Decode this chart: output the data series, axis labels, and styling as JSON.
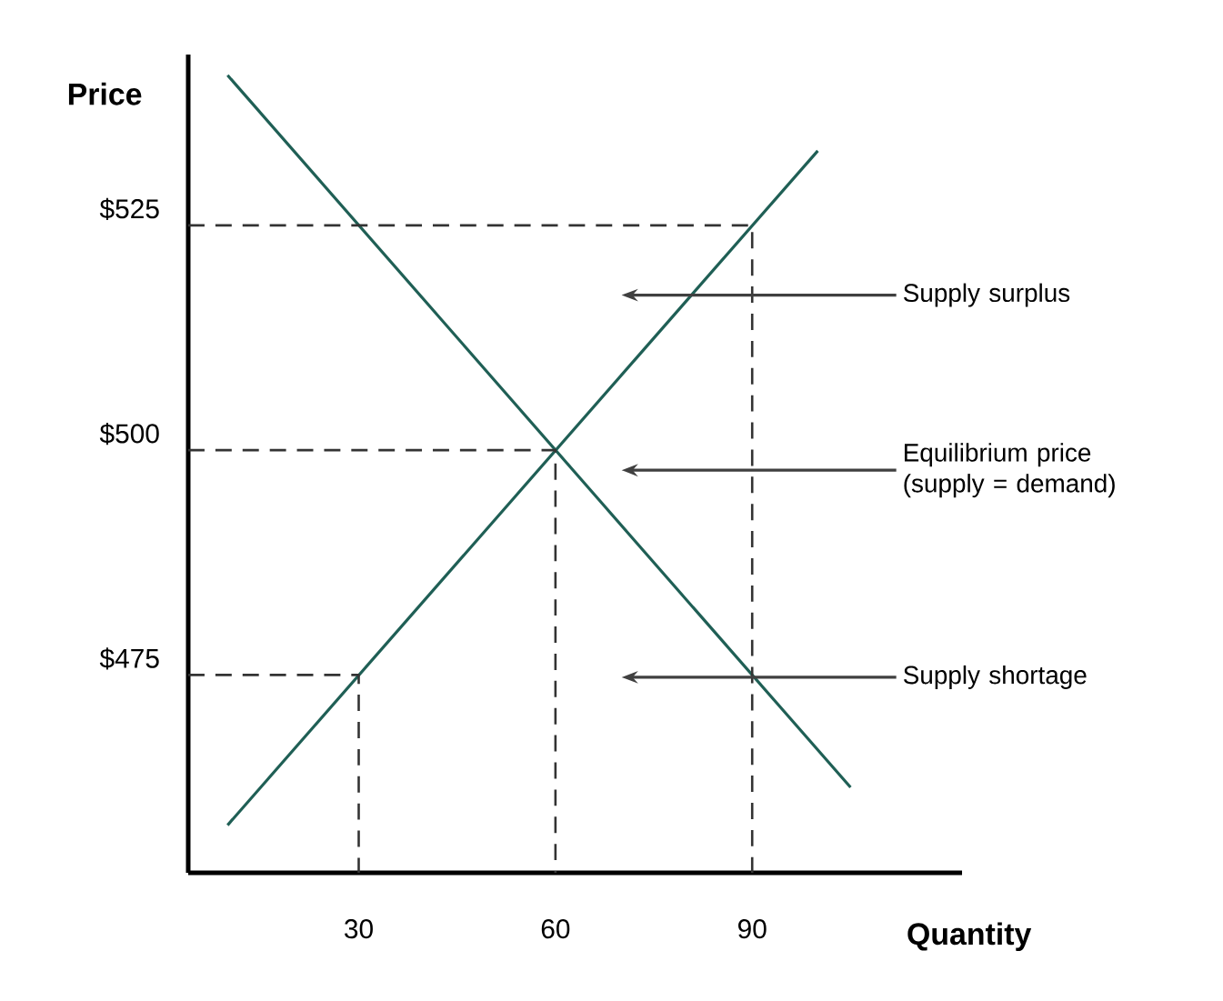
{
  "chart_data": {
    "type": "line",
    "xlabel": "Quantity",
    "ylabel": "Price",
    "xlim": [
      4,
      122
    ],
    "ylim": [
      453,
      544
    ],
    "xticks": [
      30,
      60,
      90
    ],
    "yticks": [
      {
        "value": 475,
        "label": "$475"
      },
      {
        "value": 500,
        "label": "$500"
      },
      {
        "value": 525,
        "label": "$525"
      }
    ],
    "series": [
      {
        "color": "#1f5f55",
        "x": [
          10,
          100
        ],
        "values": [
          458.3,
          533.3
        ]
      },
      {
        "color": "#1f5f55",
        "x": [
          10,
          105
        ],
        "values": [
          541.7,
          462.5
        ]
      },
      {
        "color": "#333333",
        "line_style": "dashed",
        "x": [
          4,
          90,
          90
        ],
        "values": [
          525,
          525,
          453
        ]
      },
      {
        "color": "#333333",
        "line_style": "dashed",
        "x": [
          4,
          60,
          60
        ],
        "values": [
          500,
          500,
          453
        ]
      },
      {
        "color": "#333333",
        "line_style": "dashed",
        "x": [
          4,
          30,
          30
        ],
        "values": [
          475,
          475,
          453
        ]
      }
    ],
    "annotations": [
      "Supply surplus",
      "Equilibrium price (supply = demand)",
      "Supply shortage"
    ]
  }
}
